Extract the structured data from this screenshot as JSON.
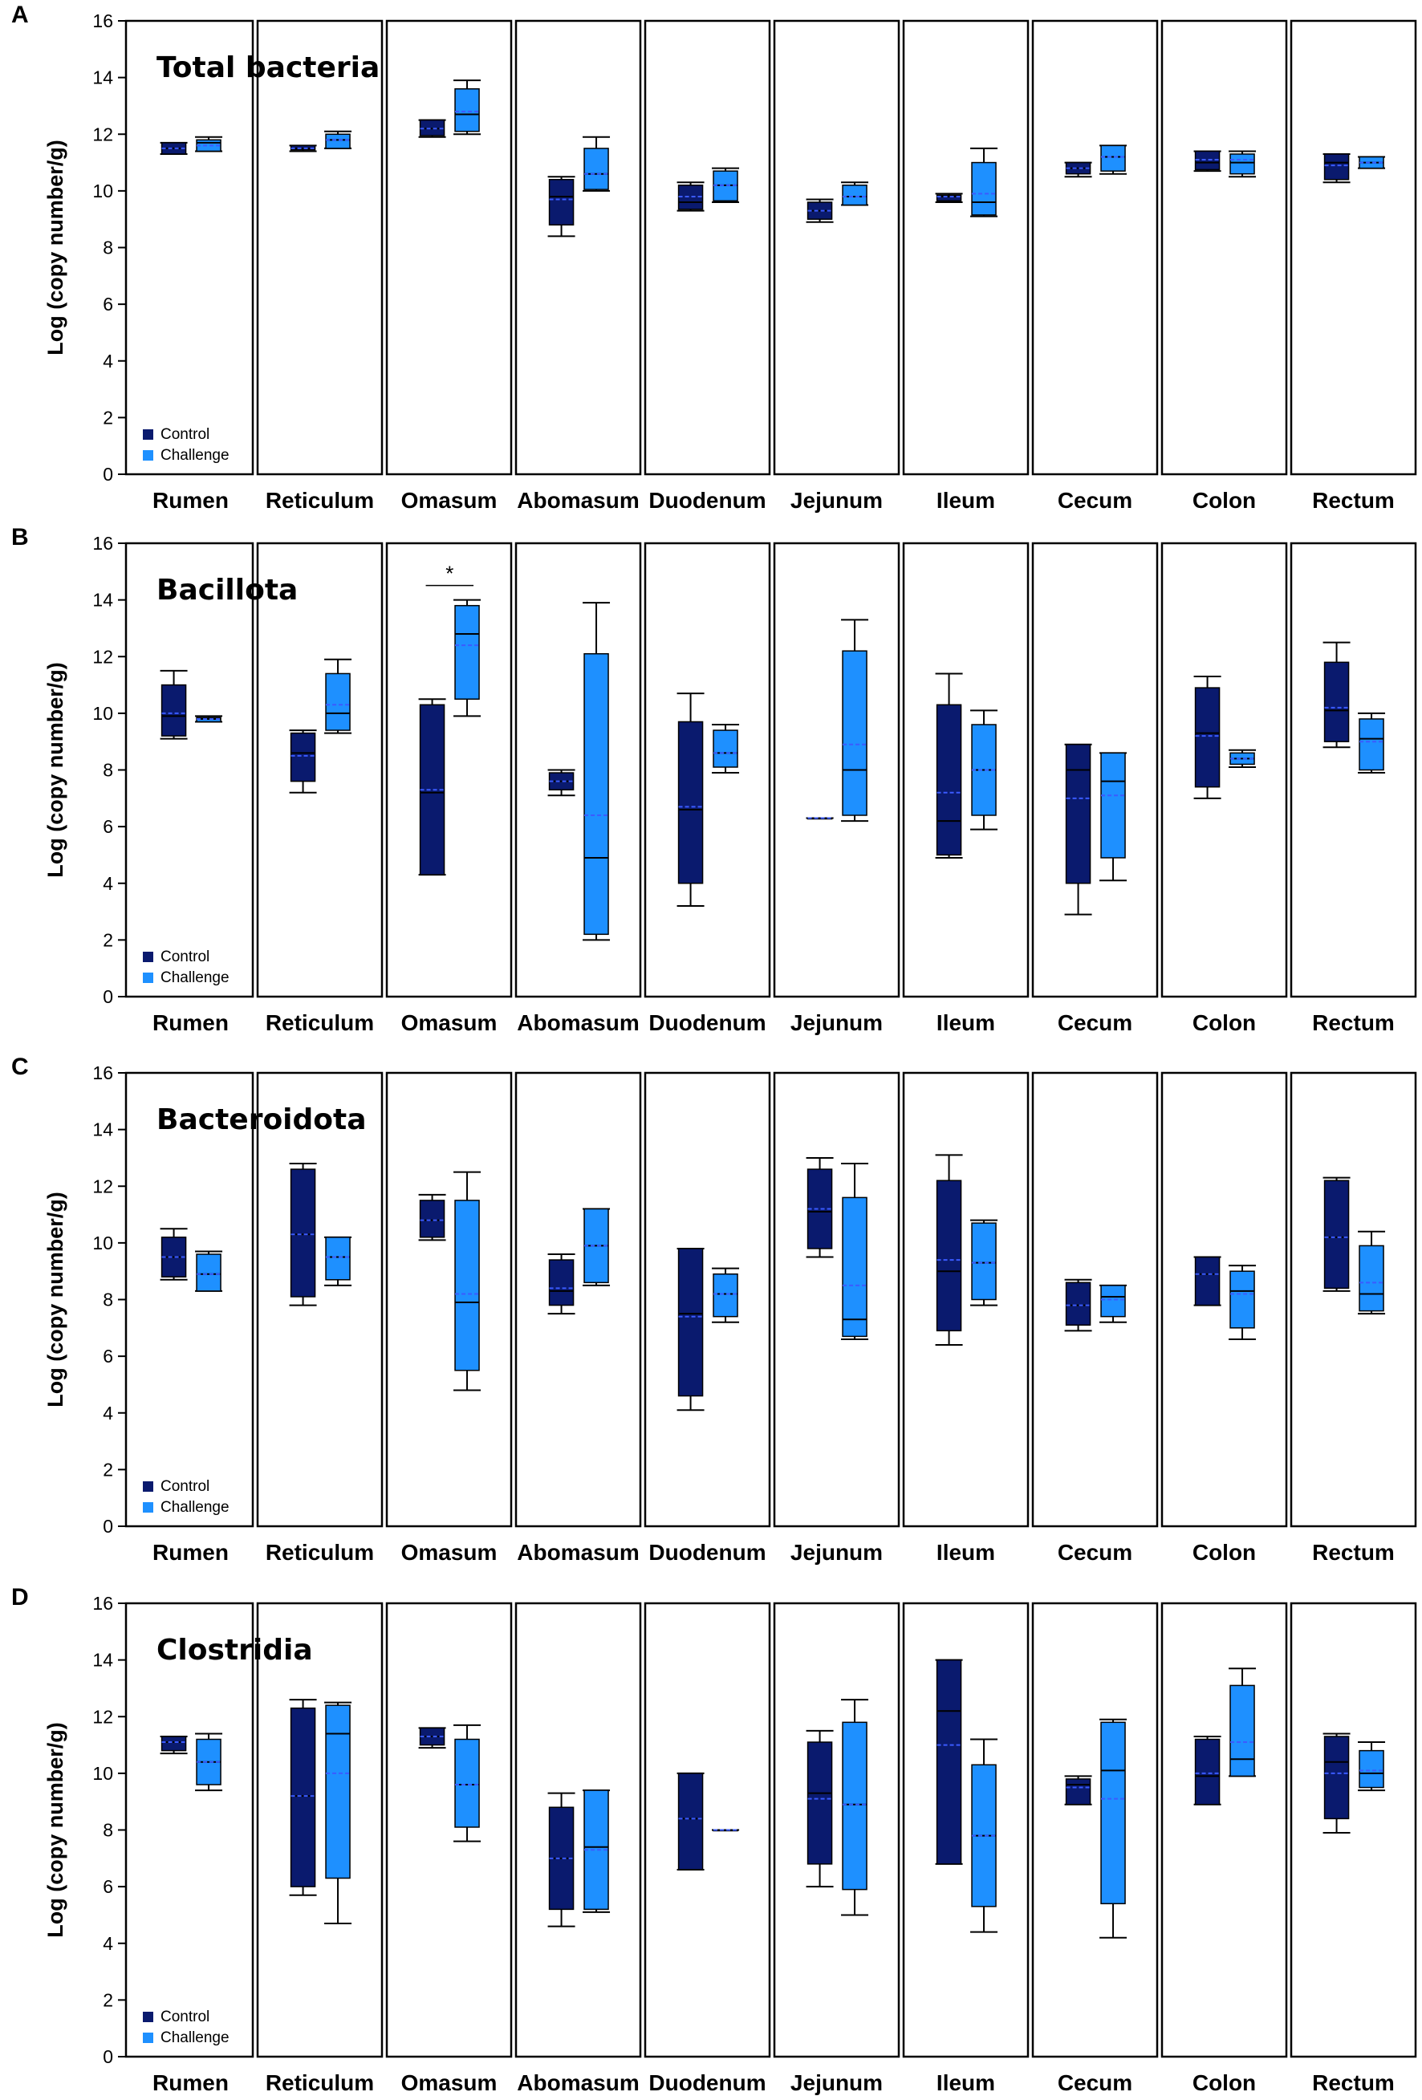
{
  "figure": {
    "ylabel": "Log (copy number/g)",
    "yticks": [
      "0",
      "2",
      "4",
      "6",
      "8",
      "10",
      "12",
      "14",
      "16"
    ],
    "legend": {
      "control": "Control",
      "challenge": "Challenge"
    },
    "colors": {
      "control": "#0a1a6e",
      "challenge": "#1e90ff",
      "mean_line": "#3b5bff",
      "frame": "#000000"
    }
  },
  "chart_data": [
    {
      "panel": "A",
      "type": "box",
      "title": "Total bacteria",
      "ylabel": "Log (copy number/g)",
      "ylim": [
        0,
        16
      ],
      "categories": [
        "Rumen",
        "Reticulum",
        "Omasum",
        "Abomasum",
        "Duodenum",
        "Jejunum",
        "Ileum",
        "Cecum",
        "Colon",
        "Rectum"
      ],
      "series": [
        {
          "name": "Control",
          "boxes": [
            {
              "min": 11.3,
              "q1": 11.3,
              "median": 11.5,
              "q3": 11.7,
              "max": 11.7,
              "mean": 11.5
            },
            {
              "min": 11.4,
              "q1": 11.45,
              "median": 11.5,
              "q3": 11.6,
              "max": 11.6,
              "mean": 11.5
            },
            {
              "min": 11.9,
              "q1": 11.95,
              "median": 12.2,
              "q3": 12.5,
              "max": 12.5,
              "mean": 12.2
            },
            {
              "min": 8.4,
              "q1": 8.8,
              "median": 9.8,
              "q3": 10.4,
              "max": 10.5,
              "mean": 9.7
            },
            {
              "min": 9.3,
              "q1": 9.35,
              "median": 9.6,
              "q3": 10.2,
              "max": 10.3,
              "mean": 9.8
            },
            {
              "min": 8.9,
              "q1": 9.0,
              "median": 9.3,
              "q3": 9.6,
              "max": 9.7,
              "mean": 9.3
            },
            {
              "min": 9.6,
              "q1": 9.65,
              "median": 9.8,
              "q3": 9.85,
              "max": 9.9,
              "mean": 9.8
            },
            {
              "min": 10.5,
              "q1": 10.6,
              "median": 10.8,
              "q3": 11.0,
              "max": 11.0,
              "mean": 10.8
            },
            {
              "min": 10.7,
              "q1": 10.75,
              "median": 11.0,
              "q3": 11.4,
              "max": 11.4,
              "mean": 11.1
            },
            {
              "min": 10.3,
              "q1": 10.4,
              "median": 11.0,
              "q3": 11.3,
              "max": 11.3,
              "mean": 10.9
            }
          ]
        },
        {
          "name": "Challenge",
          "boxes": [
            {
              "min": 11.4,
              "q1": 11.4,
              "median": 11.7,
              "q3": 11.8,
              "max": 11.9,
              "mean": 11.6
            },
            {
              "min": 11.5,
              "q1": 11.5,
              "median": 11.8,
              "q3": 12.0,
              "max": 12.1,
              "mean": 11.8
            },
            {
              "min": 12.0,
              "q1": 12.1,
              "median": 12.7,
              "q3": 13.6,
              "max": 13.9,
              "mean": 12.8
            },
            {
              "min": 10.0,
              "q1": 10.05,
              "median": 10.6,
              "q3": 11.5,
              "max": 11.9,
              "mean": 10.6
            },
            {
              "min": 9.6,
              "q1": 9.65,
              "median": 10.2,
              "q3": 10.7,
              "max": 10.8,
              "mean": 10.2
            },
            {
              "min": 9.5,
              "q1": 9.5,
              "median": 9.8,
              "q3": 10.2,
              "max": 10.3,
              "mean": 9.8
            },
            {
              "min": 9.1,
              "q1": 9.15,
              "median": 9.6,
              "q3": 11.0,
              "max": 11.5,
              "mean": 9.9
            },
            {
              "min": 10.6,
              "q1": 10.7,
              "median": 11.2,
              "q3": 11.6,
              "max": 11.6,
              "mean": 11.2
            },
            {
              "min": 10.5,
              "q1": 10.6,
              "median": 11.0,
              "q3": 11.3,
              "max": 11.4,
              "mean": 11.1
            },
            {
              "min": 10.8,
              "q1": 10.8,
              "median": 11.0,
              "q3": 11.2,
              "max": 11.2,
              "mean": 11.0
            }
          ]
        }
      ],
      "annotations": []
    },
    {
      "panel": "B",
      "type": "box",
      "title": "Bacillota",
      "ylabel": "Log (copy number/g)",
      "ylim": [
        0,
        16
      ],
      "categories": [
        "Rumen",
        "Reticulum",
        "Omasum",
        "Abomasum",
        "Duodenum",
        "Jejunum",
        "Ileum",
        "Cecum",
        "Colon",
        "Rectum"
      ],
      "series": [
        {
          "name": "Control",
          "boxes": [
            {
              "min": 9.1,
              "q1": 9.2,
              "median": 9.9,
              "q3": 11.0,
              "max": 11.5,
              "mean": 10.0
            },
            {
              "min": 7.2,
              "q1": 7.6,
              "median": 8.6,
              "q3": 9.3,
              "max": 9.4,
              "mean": 8.5
            },
            {
              "min": 4.3,
              "q1": 4.3,
              "median": 7.2,
              "q3": 10.3,
              "max": 10.5,
              "mean": 7.3
            },
            {
              "min": 7.1,
              "q1": 7.3,
              "median": 7.6,
              "q3": 7.9,
              "max": 8.0,
              "mean": 7.6
            },
            {
              "min": 3.2,
              "q1": 4.0,
              "median": 6.6,
              "q3": 9.7,
              "max": 10.7,
              "mean": 6.7
            },
            {
              "min": 6.3,
              "q1": 6.3,
              "median": 6.3,
              "q3": 6.3,
              "max": 6.3,
              "mean": 6.3
            },
            {
              "min": 4.9,
              "q1": 5.0,
              "median": 6.2,
              "q3": 10.3,
              "max": 11.4,
              "mean": 7.2
            },
            {
              "min": 2.9,
              "q1": 4.0,
              "median": 8.0,
              "q3": 8.9,
              "max": 8.9,
              "mean": 7.0
            },
            {
              "min": 7.0,
              "q1": 7.4,
              "median": 9.3,
              "q3": 10.9,
              "max": 11.3,
              "mean": 9.2
            },
            {
              "min": 8.8,
              "q1": 9.0,
              "median": 10.1,
              "q3": 11.8,
              "max": 12.5,
              "mean": 10.2
            }
          ]
        },
        {
          "name": "Challenge",
          "boxes": [
            {
              "min": 9.7,
              "q1": 9.7,
              "median": 9.8,
              "q3": 9.85,
              "max": 9.9,
              "mean": 9.8
            },
            {
              "min": 9.3,
              "q1": 9.4,
              "median": 10.0,
              "q3": 11.4,
              "max": 11.9,
              "mean": 10.3
            },
            {
              "min": 9.9,
              "q1": 10.5,
              "median": 12.8,
              "q3": 13.8,
              "max": 14.0,
              "mean": 12.4
            },
            {
              "min": 2.0,
              "q1": 2.2,
              "median": 4.9,
              "q3": 12.1,
              "max": 13.9,
              "mean": 6.4
            },
            {
              "min": 7.9,
              "q1": 8.1,
              "median": 8.6,
              "q3": 9.4,
              "max": 9.6,
              "mean": 8.6
            },
            {
              "min": 6.2,
              "q1": 6.4,
              "median": 8.0,
              "q3": 12.2,
              "max": 13.3,
              "mean": 8.9
            },
            {
              "min": 5.9,
              "q1": 6.4,
              "median": 8.0,
              "q3": 9.6,
              "max": 10.1,
              "mean": 8.0
            },
            {
              "min": 4.1,
              "q1": 4.9,
              "median": 7.6,
              "q3": 8.6,
              "max": 8.6,
              "mean": 7.1
            },
            {
              "min": 8.1,
              "q1": 8.2,
              "median": 8.4,
              "q3": 8.6,
              "max": 8.7,
              "mean": 8.4
            },
            {
              "min": 7.9,
              "q1": 8.0,
              "median": 9.1,
              "q3": 9.8,
              "max": 10.0,
              "mean": 9.0
            }
          ]
        }
      ],
      "annotations": [
        {
          "category": "Omasum",
          "text": "*"
        }
      ]
    },
    {
      "panel": "C",
      "type": "box",
      "title": "Bacteroidota",
      "ylabel": "Log (copy number/g)",
      "ylim": [
        0,
        16
      ],
      "categories": [
        "Rumen",
        "Reticulum",
        "Omasum",
        "Abomasum",
        "Duodenum",
        "Jejunum",
        "Ileum",
        "Cecum",
        "Colon",
        "Rectum"
      ],
      "series": [
        {
          "name": "Control",
          "boxes": [
            {
              "min": 8.7,
              "q1": 8.8,
              "median": 9.5,
              "q3": 10.2,
              "max": 10.5,
              "mean": 9.5
            },
            {
              "min": 7.8,
              "q1": 8.1,
              "median": 10.3,
              "q3": 12.6,
              "max": 12.8,
              "mean": 10.3
            },
            {
              "min": 10.1,
              "q1": 10.2,
              "median": 10.8,
              "q3": 11.5,
              "max": 11.7,
              "mean": 10.8
            },
            {
              "min": 7.5,
              "q1": 7.8,
              "median": 8.3,
              "q3": 9.4,
              "max": 9.6,
              "mean": 8.4
            },
            {
              "min": 4.1,
              "q1": 4.6,
              "median": 7.5,
              "q3": 9.8,
              "max": 9.8,
              "mean": 7.4
            },
            {
              "min": 9.5,
              "q1": 9.8,
              "median": 11.1,
              "q3": 12.6,
              "max": 13.0,
              "mean": 11.2
            },
            {
              "min": 6.4,
              "q1": 6.9,
              "median": 9.0,
              "q3": 12.2,
              "max": 13.1,
              "mean": 9.4
            },
            {
              "min": 6.9,
              "q1": 7.1,
              "median": 7.8,
              "q3": 8.6,
              "max": 8.7,
              "mean": 7.8
            },
            {
              "min": 7.8,
              "q1": 7.8,
              "median": 8.9,
              "q3": 9.5,
              "max": 9.5,
              "mean": 8.9
            },
            {
              "min": 8.3,
              "q1": 8.4,
              "median": 10.2,
              "q3": 12.2,
              "max": 12.3,
              "mean": 10.2
            }
          ]
        },
        {
          "name": "Challenge",
          "boxes": [
            {
              "min": 8.3,
              "q1": 8.3,
              "median": 8.9,
              "q3": 9.6,
              "max": 9.7,
              "mean": 8.9
            },
            {
              "min": 8.5,
              "q1": 8.7,
              "median": 9.5,
              "q3": 10.2,
              "max": 10.2,
              "mean": 9.5
            },
            {
              "min": 4.8,
              "q1": 5.5,
              "median": 7.9,
              "q3": 11.5,
              "max": 12.5,
              "mean": 8.2
            },
            {
              "min": 8.5,
              "q1": 8.6,
              "median": 9.9,
              "q3": 11.2,
              "max": 11.2,
              "mean": 9.9
            },
            {
              "min": 7.2,
              "q1": 7.4,
              "median": 8.2,
              "q3": 8.9,
              "max": 9.1,
              "mean": 8.2
            },
            {
              "min": 6.6,
              "q1": 6.7,
              "median": 7.3,
              "q3": 11.6,
              "max": 12.8,
              "mean": 8.5
            },
            {
              "min": 7.8,
              "q1": 8.0,
              "median": 9.3,
              "q3": 10.7,
              "max": 10.8,
              "mean": 9.3
            },
            {
              "min": 7.2,
              "q1": 7.4,
              "median": 8.1,
              "q3": 8.5,
              "max": 8.5,
              "mean": 8.0
            },
            {
              "min": 6.6,
              "q1": 7.0,
              "median": 8.3,
              "q3": 9.0,
              "max": 9.2,
              "mean": 8.2
            },
            {
              "min": 7.5,
              "q1": 7.6,
              "median": 8.2,
              "q3": 9.9,
              "max": 10.4,
              "mean": 8.6
            }
          ]
        }
      ],
      "annotations": []
    },
    {
      "panel": "D",
      "type": "box",
      "title": "Clostridia",
      "ylabel": "Log (copy number/g)",
      "ylim": [
        0,
        16
      ],
      "categories": [
        "Rumen",
        "Reticulum",
        "Omasum",
        "Abomasum",
        "Duodenum",
        "Jejunum",
        "Ileum",
        "Cecum",
        "Colon",
        "Rectum"
      ],
      "series": [
        {
          "name": "Control",
          "boxes": [
            {
              "min": 10.7,
              "q1": 10.8,
              "median": 11.1,
              "q3": 11.3,
              "max": 11.3,
              "mean": 11.1
            },
            {
              "min": 5.7,
              "q1": 6.0,
              "median": 9.2,
              "q3": 12.3,
              "max": 12.6,
              "mean": 9.2
            },
            {
              "min": 10.9,
              "q1": 11.0,
              "median": 11.3,
              "q3": 11.6,
              "max": 11.6,
              "mean": 11.3
            },
            {
              "min": 4.6,
              "q1": 5.2,
              "median": 7.0,
              "q3": 8.8,
              "max": 9.3,
              "mean": 7.0
            },
            {
              "min": 6.6,
              "q1": 6.6,
              "median": 8.4,
              "q3": 10.0,
              "max": 10.0,
              "mean": 8.4
            },
            {
              "min": 6.0,
              "q1": 6.8,
              "median": 9.3,
              "q3": 11.1,
              "max": 11.5,
              "mean": 9.1
            },
            {
              "min": 6.8,
              "q1": 6.8,
              "median": 12.2,
              "q3": 14.0,
              "max": 14.0,
              "mean": 11.0
            },
            {
              "min": 8.9,
              "q1": 8.9,
              "median": 9.6,
              "q3": 9.8,
              "max": 9.9,
              "mean": 9.5
            },
            {
              "min": 8.9,
              "q1": 8.9,
              "median": 9.9,
              "q3": 11.2,
              "max": 11.3,
              "mean": 10.0
            },
            {
              "min": 7.9,
              "q1": 8.4,
              "median": 10.4,
              "q3": 11.3,
              "max": 11.4,
              "mean": 10.0
            }
          ]
        },
        {
          "name": "Challenge",
          "boxes": [
            {
              "min": 9.4,
              "q1": 9.6,
              "median": 10.4,
              "q3": 11.2,
              "max": 11.4,
              "mean": 10.4
            },
            {
              "min": 4.7,
              "q1": 6.3,
              "median": 11.4,
              "q3": 12.4,
              "max": 12.5,
              "mean": 10.0
            },
            {
              "min": 7.6,
              "q1": 8.1,
              "median": 9.6,
              "q3": 11.2,
              "max": 11.7,
              "mean": 9.6
            },
            {
              "min": 5.1,
              "q1": 5.2,
              "median": 7.4,
              "q3": 9.4,
              "max": 9.4,
              "mean": 7.3
            },
            {
              "min": 8.0,
              "q1": 8.0,
              "median": 8.0,
              "q3": 8.0,
              "max": 8.0,
              "mean": 8.0
            },
            {
              "min": 5.0,
              "q1": 5.9,
              "median": 8.9,
              "q3": 11.8,
              "max": 12.6,
              "mean": 8.9
            },
            {
              "min": 4.4,
              "q1": 5.3,
              "median": 7.8,
              "q3": 10.3,
              "max": 11.2,
              "mean": 7.8
            },
            {
              "min": 4.2,
              "q1": 5.4,
              "median": 10.1,
              "q3": 11.8,
              "max": 11.9,
              "mean": 9.1
            },
            {
              "min": 9.9,
              "q1": 9.9,
              "median": 10.5,
              "q3": 13.1,
              "max": 13.7,
              "mean": 11.1
            },
            {
              "min": 9.4,
              "q1": 9.5,
              "median": 10.0,
              "q3": 10.8,
              "max": 11.1,
              "mean": 10.1
            }
          ]
        }
      ],
      "annotations": []
    }
  ]
}
